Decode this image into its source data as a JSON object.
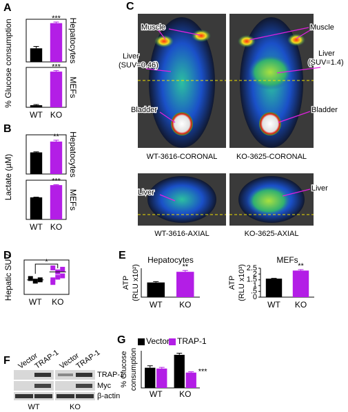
{
  "panel_labels": [
    "A",
    "B",
    "C",
    "D",
    "E",
    "F",
    "G"
  ],
  "chart_data": [
    {
      "type": "bar",
      "ylabel": "% Glucose consumption",
      "categories": [
        "WT",
        "KO"
      ],
      "colors": [
        "#000000",
        "#b31ee6"
      ],
      "facets": [
        {
          "label": "Hepatocytes",
          "values": [
            3.5,
            10
          ],
          "errors": [
            0.5,
            0.3
          ],
          "annotation": "***",
          "ylim": [
            0,
            11
          ]
        },
        {
          "label": "MEFs",
          "values": [
            1,
            17
          ],
          "errors": [
            0.3,
            0.5
          ],
          "annotation": "***",
          "ylim": [
            0,
            19
          ]
        }
      ]
    },
    {
      "type": "bar",
      "ylabel": "Lactate (µM)",
      "categories": [
        "WT",
        "KO"
      ],
      "colors": [
        "#000000",
        "#b31ee6"
      ],
      "facets": [
        {
          "label": "Hepatocytes",
          "values": [
            0.8,
            1.2
          ],
          "errors": [
            0.02,
            0.05
          ],
          "annotation": "**",
          "ylim": [
            0,
            1.45
          ]
        },
        {
          "label": "MEFs",
          "values": [
            0.9,
            1.4
          ],
          "errors": [
            0.01,
            0.02
          ],
          "annotation": "***",
          "ylim": [
            0,
            1.6
          ]
        }
      ]
    },
    {
      "type": "scatter",
      "ylabel": "Hepatic SUV",
      "categories": [
        "WT",
        "KO"
      ],
      "colors": [
        "#000000",
        "#b31ee6"
      ],
      "points": [
        [
          0.6,
          0.5,
          0.55
        ],
        [
          0.45,
          0.65,
          0.95,
          1.0,
          0.85,
          0.7,
          0.55
        ]
      ],
      "means": [
        0.55,
        0.85
      ],
      "annotation": "*",
      "ylim": [
        0,
        1.3
      ]
    },
    {
      "type": "bar",
      "title": "Hepatocytes",
      "ylabel": [
        "ATP",
        "(RLU x10²)"
      ],
      "categories": [
        "WT",
        "KO"
      ],
      "colors": [
        "#000000",
        "#b31ee6"
      ],
      "values": [
        3.3,
        5.7
      ],
      "errors": [
        0.2,
        0.3
      ],
      "annotation": "**",
      "ylim": [
        0,
        6.5
      ]
    },
    {
      "type": "bar",
      "title": "MEFs",
      "ylabel": [
        "ATP",
        "(RLU x10³)"
      ],
      "categories": [
        "WT",
        "KO"
      ],
      "colors": [
        "#000000",
        "#b31ee6"
      ],
      "values": [
        1.6,
        2.3
      ],
      "errors": [
        0.03,
        0.08
      ],
      "annotation": "**",
      "ylim": [
        0,
        2.5
      ],
      "yticks": [
        0,
        {
          "value": 0.5,
          "label": ".5"
        },
        1,
        1.5,
        2,
        2.5
      ]
    },
    {
      "type": "bar",
      "ylabel": [
        "% Glucose",
        "consumption"
      ],
      "categories": [
        "WT",
        "KO"
      ],
      "series": [
        {
          "name": "Vector",
          "color": "#000000",
          "values": [
            25,
            41
          ],
          "errors": [
            2.5,
            2
          ]
        },
        {
          "name": "TRAP-1",
          "color": "#b31ee6",
          "values": [
            24,
            19
          ],
          "errors": [
            1.5,
            1
          ]
        }
      ],
      "annotation": "***",
      "ylim": [
        0,
        46
      ]
    }
  ],
  "pet": {
    "coronal": [
      {
        "caption": "WT-3616-CORONAL",
        "muscle": "Muscle",
        "liver": [
          "Liver",
          "(SUV=0.46)"
        ],
        "bladder": "Bladder"
      },
      {
        "caption": "KO-3625-CORONAL",
        "muscle": "Muscle",
        "liver": [
          "Liver",
          "(SUV=1.4)"
        ],
        "bladder": "Bladder"
      }
    ],
    "axial": [
      {
        "caption": "WT-3616-AXIAL",
        "liver": "Liver"
      },
      {
        "caption": "KO-3625-AXIAL",
        "liver": "Liver"
      }
    ]
  },
  "western": {
    "lanes": [
      "Vector",
      "TRAP-1",
      "Vector",
      "TRAP-1"
    ],
    "bands": [
      "TRAP-1",
      "Myc",
      "β-actin"
    ],
    "groups": [
      "WT",
      "KO"
    ]
  }
}
